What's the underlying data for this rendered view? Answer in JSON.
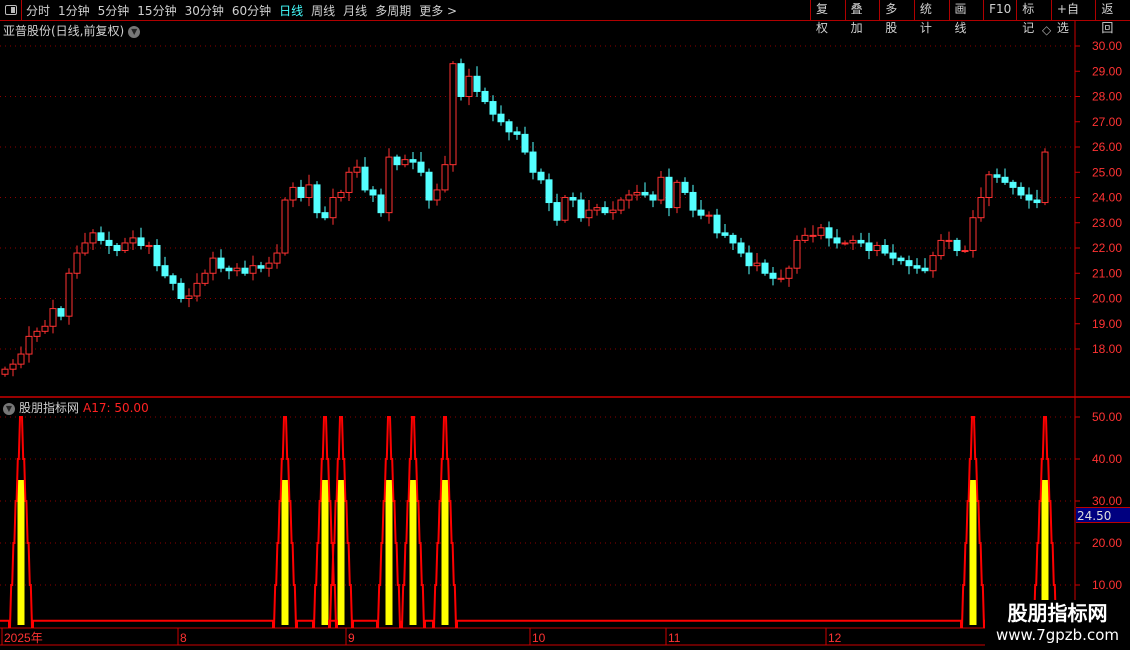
{
  "toolbar": {
    "periods": [
      "分时",
      "1分钟",
      "5分钟",
      "15分钟",
      "30分钟",
      "60分钟",
      "日线",
      "周线",
      "月线",
      "多周期",
      "更多 >"
    ],
    "active_period": "日线",
    "buttons": [
      "复权",
      "叠加",
      "多股",
      "统计",
      "画线",
      "F10",
      "标记",
      "+自选",
      "返回"
    ]
  },
  "chart_title": "亚普股份(日线,前复权)",
  "indicator": {
    "name": "股朋指标网",
    "value_label": "A17: 50.00",
    "current_value_box": "24.50"
  },
  "colors": {
    "up": "#ff3232",
    "down": "#54ffff",
    "indicator_line": "#ff0000",
    "indicator_bar": "#ffff00",
    "grid": "#8b0000"
  },
  "chart_data": {
    "type": "candlestick",
    "price_axis": {
      "ticks": [
        "30.00",
        "29.00",
        "28.00",
        "27.00",
        "26.00",
        "25.00",
        "24.00",
        "23.00",
        "22.00",
        "21.00",
        "20.00",
        "19.00",
        "18.00"
      ],
      "range": [
        16.9,
        30.3
      ]
    },
    "close": [
      17.2,
      17.4,
      17.8,
      18.5,
      18.7,
      18.9,
      19.6,
      19.3,
      21.0,
      21.8,
      22.2,
      22.6,
      22.3,
      22.1,
      21.9,
      22.2,
      22.4,
      22.1,
      22.1,
      21.3,
      20.9,
      20.6,
      20.0,
      20.1,
      20.6,
      21.0,
      21.6,
      21.2,
      21.1,
      21.2,
      21.0,
      21.3,
      21.2,
      21.4,
      21.8,
      23.9,
      24.4,
      24.0,
      24.5,
      23.4,
      23.2,
      24.0,
      24.2,
      25.0,
      25.2,
      24.3,
      24.1,
      23.4,
      25.6,
      25.3,
      25.5,
      25.4,
      25.0,
      23.9,
      24.3,
      25.3,
      29.3,
      28.0,
      28.8,
      28.2,
      27.8,
      27.3,
      27.0,
      26.6,
      26.5,
      25.8,
      25.0,
      24.7,
      23.8,
      23.1,
      24.0,
      23.9,
      23.2,
      23.5,
      23.6,
      23.4,
      23.5,
      23.9,
      24.1,
      24.2,
      24.1,
      23.9,
      24.8,
      23.6,
      24.6,
      24.2,
      23.5,
      23.3,
      23.3,
      22.6,
      22.5,
      22.2,
      21.8,
      21.3,
      21.4,
      21.0,
      20.8,
      20.8,
      21.2,
      22.3,
      22.5,
      22.5,
      22.8,
      22.4,
      22.2,
      22.2,
      22.3,
      22.2,
      21.9,
      22.1,
      21.8,
      21.6,
      21.5,
      21.3,
      21.2,
      21.1,
      21.7,
      22.3,
      22.3,
      21.9,
      21.9,
      23.2,
      24.0,
      24.9,
      24.8,
      24.6,
      24.4,
      24.1,
      23.9,
      23.8,
      25.8
    ],
    "indicator_axis": {
      "ticks": [
        "50.00",
        "40.00",
        "30.00",
        "20.00",
        "10.00"
      ],
      "range": [
        0,
        50
      ]
    },
    "signal_indices": [
      2,
      35,
      40,
      42,
      48,
      51,
      55,
      121,
      130
    ],
    "signal_line_peak": 50,
    "signal_bar_value": 35,
    "date_labels": [
      {
        "label": "2025年",
        "index": 0
      },
      {
        "label": "8",
        "index": 22
      },
      {
        "label": "9",
        "index": 43
      },
      {
        "label": "10",
        "index": 66
      },
      {
        "label": "11",
        "index": 83
      },
      {
        "label": "12",
        "index": 103
      }
    ]
  },
  "watermark": {
    "name": "股朋指标网",
    "url": "www.7gpzb.com"
  }
}
